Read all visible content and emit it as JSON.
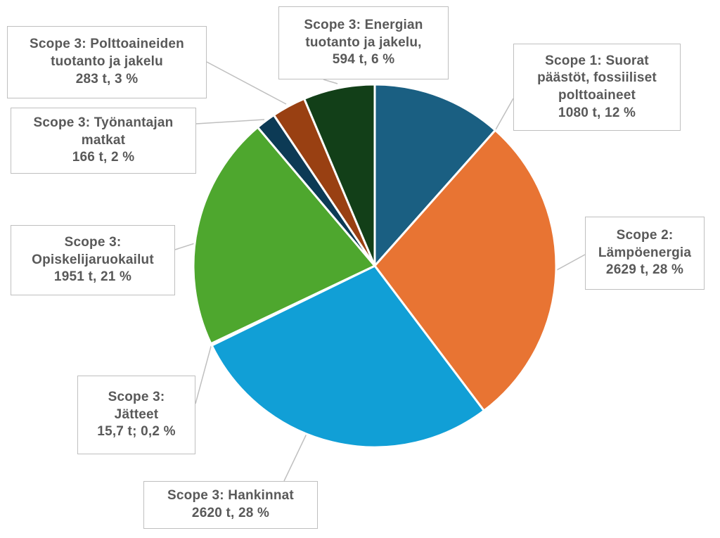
{
  "chart_data": {
    "type": "pie",
    "title": "",
    "start_angle_deg": 0,
    "direction": "clockwise",
    "slices": [
      {
        "id": "scope1",
        "name": "Scope 1: Suorat päästöt, fossiiliset polttoaineet",
        "value": 1080,
        "percent": 12,
        "color": "#1a5f82",
        "label_lines": [
          "Scope 1: Suorat",
          "päästöt, fossiiliset",
          "polttoaineet",
          "1080 t,  12 %"
        ]
      },
      {
        "id": "scope2",
        "name": "Scope 2: Lämpöenergia",
        "value": 2629,
        "percent": 28,
        "color": "#e87433",
        "label_lines": [
          "Scope 2:",
          "Lämpöenergia",
          "2629 t, 28 %"
        ]
      },
      {
        "id": "hankinnat",
        "name": "Scope 3: Hankinnat",
        "value": 2620,
        "percent": 28,
        "color": "#119fd6",
        "label_lines": [
          "Scope 3: Hankinnat",
          "2620 t, 28 %"
        ]
      },
      {
        "id": "jatteet",
        "name": "Scope 3: Jätteet",
        "value": 15.7,
        "percent": 0.2,
        "color": "#8c8c8c",
        "label_lines": [
          "Scope 3:",
          "Jätteet",
          "15,7 t; 0,2 %"
        ]
      },
      {
        "id": "opiskelijaruokailut",
        "name": "Scope 3: Opiskelijaruokailut",
        "value": 1951,
        "percent": 21,
        "color": "#4ea72e",
        "label_lines": [
          "Scope 3:",
          "Opiskelijaruokailut",
          "1951 t, 21 %"
        ]
      },
      {
        "id": "matkat",
        "name": "Scope 3: Työnantajan matkat",
        "value": 166,
        "percent": 2,
        "color": "#0c3a55",
        "label_lines": [
          "Scope 3: Työnantajan",
          "matkat",
          "166 t, 2 %"
        ]
      },
      {
        "id": "polttoaineet",
        "name": "Scope 3: Polttoaineiden tuotanto ja jakelu",
        "value": 283,
        "percent": 3,
        "color": "#994012",
        "label_lines": [
          "Scope 3: Polttoaineiden",
          "tuotanto ja jakelu",
          "283 t, 3 %"
        ]
      },
      {
        "id": "energia",
        "name": "Scope 3: Energian tuotanto ja jakelu",
        "value": 594,
        "percent": 6,
        "color": "#123f18",
        "label_lines": [
          "Scope 3: Energian",
          "tuotanto ja jakelu,",
          "594 t, 6 %"
        ]
      }
    ]
  }
}
